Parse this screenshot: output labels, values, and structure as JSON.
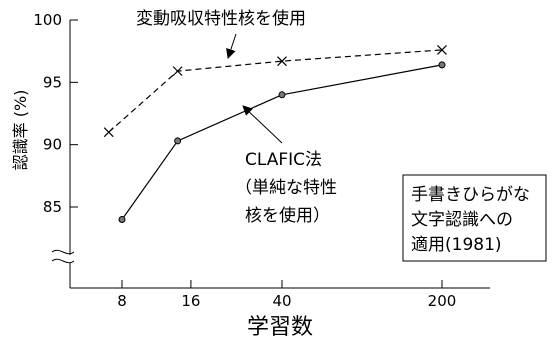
{
  "chart_data": {
    "type": "line",
    "title": "",
    "xlabel": "学習数",
    "ylabel": "認識率 (%)",
    "x_scale": "log",
    "ylim": [
      80,
      100
    ],
    "y_axis_break": true,
    "xticks": [
      8,
      16,
      40,
      200
    ],
    "yticks": [
      85,
      90,
      95,
      100
    ],
    "series": [
      {
        "name": "変動吸収特性核を使用",
        "style": "dashed",
        "marker": "x",
        "color": "#000000",
        "points": [
          {
            "x": 7,
            "y": 91.0
          },
          {
            "x": 14,
            "y": 95.9
          },
          {
            "x": 40,
            "y": 96.7
          },
          {
            "x": 200,
            "y": 97.6
          }
        ]
      },
      {
        "name": "CLAFIC法（単純な特性核を使用）",
        "style": "solid",
        "marker": "circle",
        "color": "#000000",
        "points": [
          {
            "x": 8,
            "y": 84.0
          },
          {
            "x": 14,
            "y": 90.3
          },
          {
            "x": 40,
            "y": 94.0
          },
          {
            "x": 200,
            "y": 96.4
          }
        ]
      }
    ],
    "annotations": {
      "dashed_label": "変動吸収特性核を使用",
      "solid_label_lines": [
        "CLAFIC法",
        "（単純な特性",
        "核を使用）"
      ]
    },
    "note_box_lines": [
      "手書きひらがな",
      "文字認識への",
      "適用(1981)"
    ]
  }
}
